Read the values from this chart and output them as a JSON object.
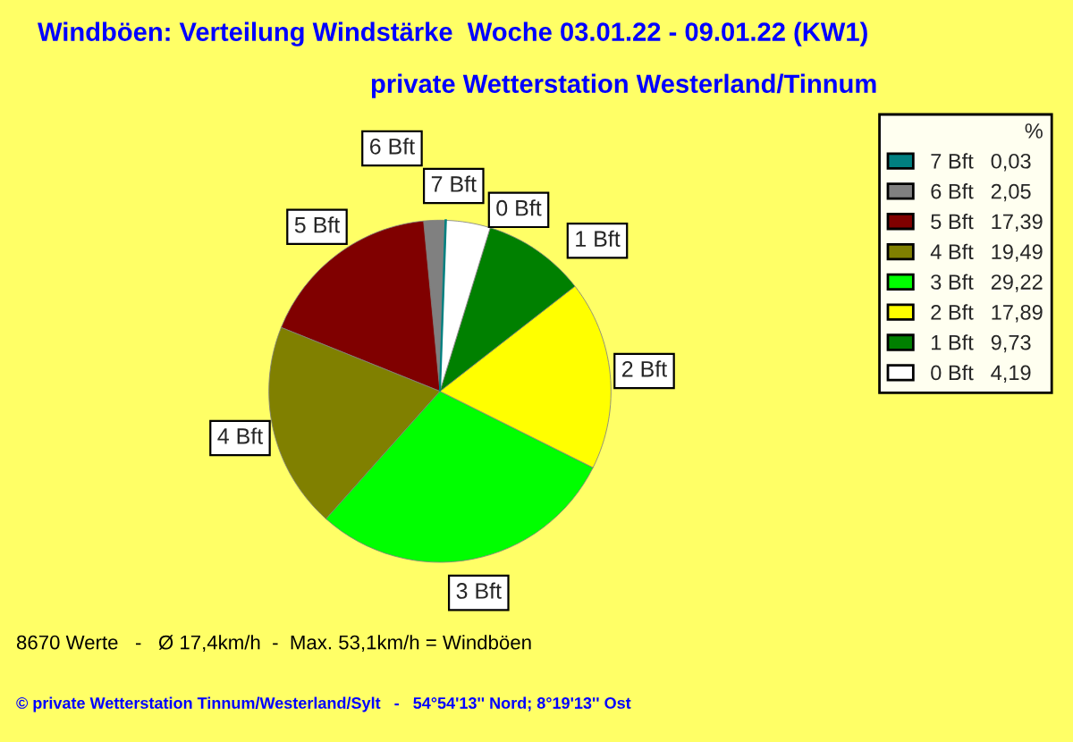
{
  "chart_data": {
    "type": "pie",
    "title": "Windböen: Verteilung Windstärke  Woche 03.01.22 - 09.01.22 (KW1)",
    "subtitle": "private Wetterstation Westerland/Tinnum",
    "categories": [
      "7 Bft",
      "6 Bft",
      "5 Bft",
      "4 Bft",
      "3 Bft",
      "2 Bft",
      "1 Bft",
      "0 Bft"
    ],
    "values": [
      0.03,
      2.05,
      17.39,
      19.49,
      29.22,
      17.89,
      9.73,
      4.19
    ],
    "value_labels": [
      "0,03",
      "2,05",
      "17,39",
      "19,49",
      "29,22",
      "17,89",
      "9,73",
      "4,19"
    ],
    "colors": [
      "#008080",
      "#808080",
      "#800000",
      "#808000",
      "#00ff00",
      "#ffff00",
      "#008000",
      "#ffffff"
    ],
    "legend_title": "%",
    "legend": "right",
    "annotations": [
      "8670 Werte   -   Ø 17,4km/h  -  Max. 53,1km/h = Windböen",
      "© private Wetterstation Tinnum/Westerland/Sylt   -   54°54'13'' Nord; 8°19'13'' Ost"
    ]
  }
}
